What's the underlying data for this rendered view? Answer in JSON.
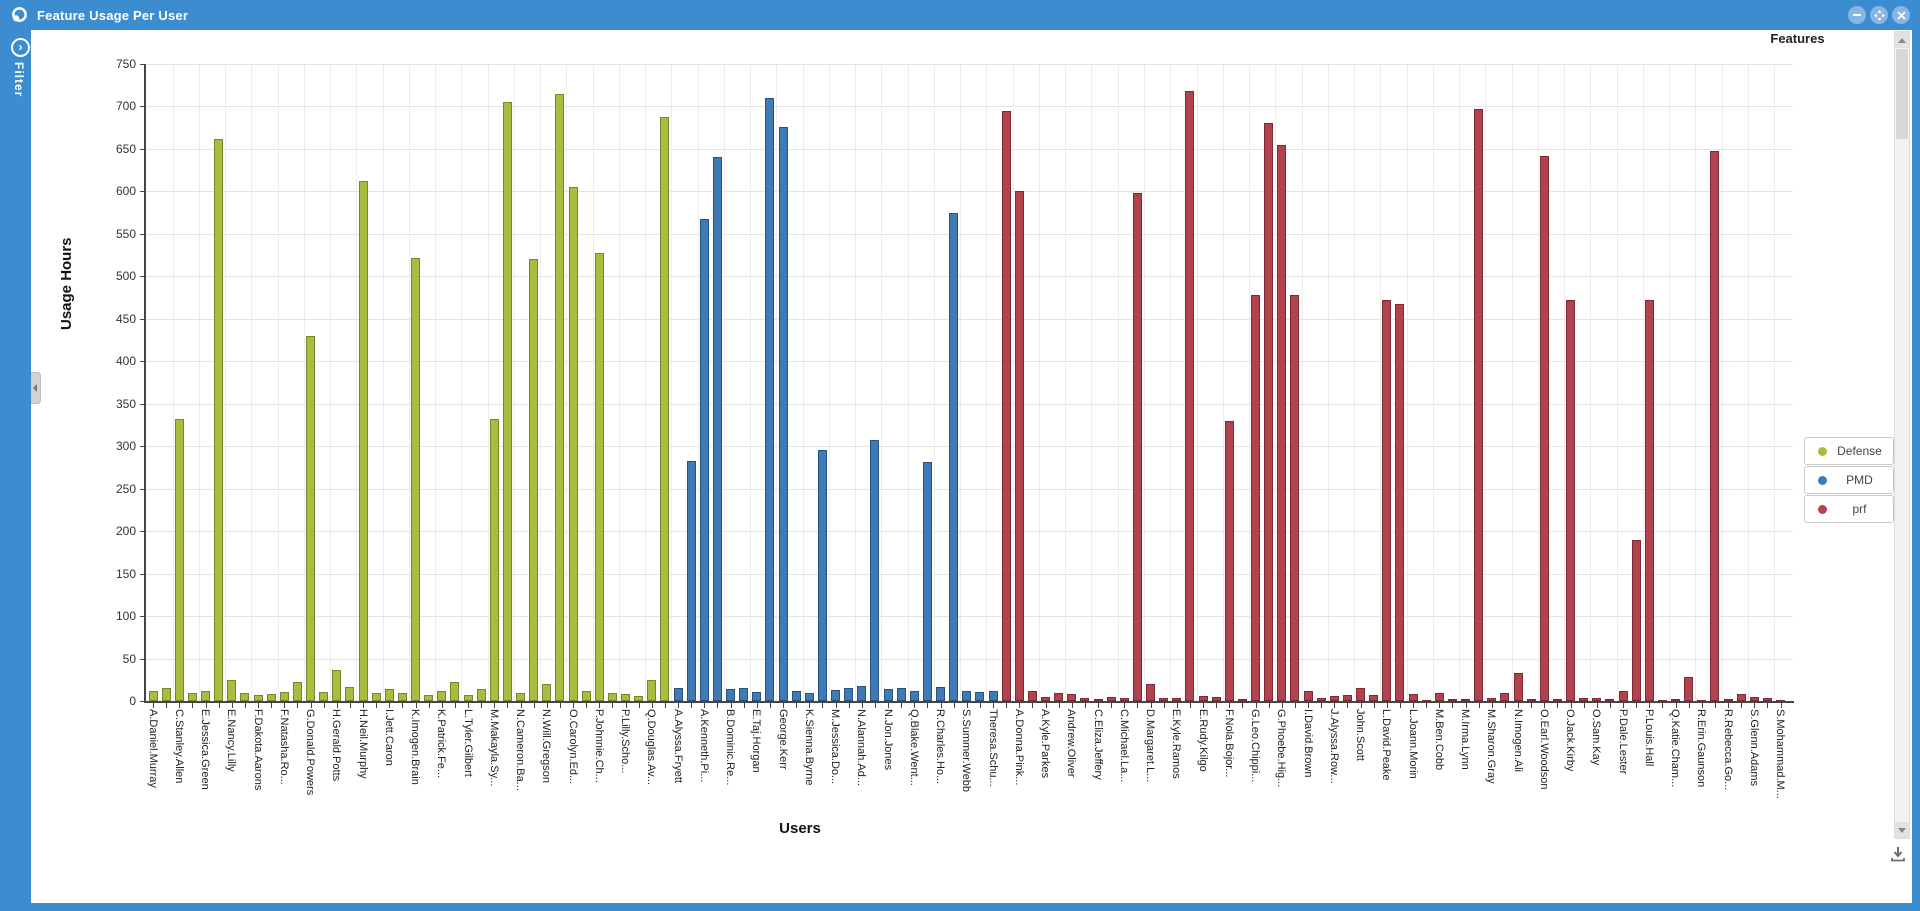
{
  "window": {
    "title": "Feature Usage Per User",
    "controls": {
      "minimize": "minimize",
      "maximize": "maximize",
      "close": "close"
    }
  },
  "sidebar": {
    "label": "Filter"
  },
  "panel": {
    "features_header": "Features"
  },
  "colors": {
    "titlebar": "#3c8dd0",
    "button_circle": "#85b6e4",
    "defense": "#a9bc3e",
    "defense_border": "#75862b",
    "pmd": "#3e7ab5",
    "pmd_border": "#27527d",
    "prf": "#b2434e",
    "prf_border": "#7c2b34"
  },
  "legend": [
    {
      "name": "Defense",
      "color": "#a9bc3e"
    },
    {
      "name": "PMD",
      "color": "#3e7ab5"
    },
    {
      "name": "prf",
      "color": "#b2434e"
    }
  ],
  "chart_data": {
    "type": "bar",
    "title": "",
    "xlabel": "Users",
    "ylabel": "Usage Hours",
    "ylim": [
      0,
      750
    ],
    "ytick_step": 50,
    "grid": true,
    "legend_position": "right",
    "series": [
      {
        "name": "Defense",
        "color": "#a9bc3e",
        "border": "#75862b"
      },
      {
        "name": "PMD",
        "color": "#3e7ab5",
        "border": "#27527d"
      },
      {
        "name": "prf",
        "color": "#b2434e",
        "border": "#7c2b34"
      }
    ],
    "bars": [
      {
        "user": "A.Daniel.Murray",
        "hours": 12,
        "feature": "Defense"
      },
      {
        "user": "",
        "hours": 15,
        "feature": "Defense"
      },
      {
        "user": "C.Stanley.Allen",
        "hours": 332,
        "feature": "Defense"
      },
      {
        "user": "",
        "hours": 9,
        "feature": "Defense"
      },
      {
        "user": "E.Jessica.Green",
        "hours": 12,
        "feature": "Defense"
      },
      {
        "user": "",
        "hours": 662,
        "feature": "Defense"
      },
      {
        "user": "E.Nancy.Lilly",
        "hours": 25,
        "feature": "Defense"
      },
      {
        "user": "",
        "hours": 9,
        "feature": "Defense"
      },
      {
        "user": "F.Dakota.Aarons",
        "hours": 7,
        "feature": "Defense"
      },
      {
        "user": "",
        "hours": 8,
        "feature": "Defense"
      },
      {
        "user": "F.Natasha.Ro...",
        "hours": 11,
        "feature": "Defense"
      },
      {
        "user": "",
        "hours": 22,
        "feature": "Defense"
      },
      {
        "user": "G.Donald.Powers",
        "hours": 430,
        "feature": "Defense"
      },
      {
        "user": "",
        "hours": 11,
        "feature": "Defense"
      },
      {
        "user": "H.Gerald.Potts",
        "hours": 37,
        "feature": "Defense"
      },
      {
        "user": "",
        "hours": 17,
        "feature": "Defense"
      },
      {
        "user": "H.Neil.Murphy",
        "hours": 612,
        "feature": "Defense"
      },
      {
        "user": "",
        "hours": 10,
        "feature": "Defense"
      },
      {
        "user": "I.Jett.Caron",
        "hours": 14,
        "feature": "Defense"
      },
      {
        "user": "",
        "hours": 10,
        "feature": "Defense"
      },
      {
        "user": "K.Imogen.Brain",
        "hours": 522,
        "feature": "Defense"
      },
      {
        "user": "",
        "hours": 7,
        "feature": "Defense"
      },
      {
        "user": "K.Patrick.Fe...",
        "hours": 12,
        "feature": "Defense"
      },
      {
        "user": "",
        "hours": 22,
        "feature": "Defense"
      },
      {
        "user": "L.Tyler.Gilbert",
        "hours": 7,
        "feature": "Defense"
      },
      {
        "user": "",
        "hours": 14,
        "feature": "Defense"
      },
      {
        "user": "M.Makayla.Sy...",
        "hours": 332,
        "feature": "Defense"
      },
      {
        "user": "",
        "hours": 705,
        "feature": "Defense"
      },
      {
        "user": "N.Cameron.Ba...",
        "hours": 9,
        "feature": "Defense"
      },
      {
        "user": "",
        "hours": 520,
        "feature": "Defense"
      },
      {
        "user": "N.Will.Gregson",
        "hours": 20,
        "feature": "Defense"
      },
      {
        "user": "",
        "hours": 715,
        "feature": "Defense"
      },
      {
        "user": "O.Carolyn.Ed...",
        "hours": 605,
        "feature": "Defense"
      },
      {
        "user": "",
        "hours": 12,
        "feature": "Defense"
      },
      {
        "user": "P.Johnnie.Ch...",
        "hours": 527,
        "feature": "Defense"
      },
      {
        "user": "",
        "hours": 9,
        "feature": "Defense"
      },
      {
        "user": "P.Lilly.Scho...",
        "hours": 8,
        "feature": "Defense"
      },
      {
        "user": "",
        "hours": 6,
        "feature": "Defense"
      },
      {
        "user": "Q.Douglas.Av...",
        "hours": 25,
        "feature": "Defense"
      },
      {
        "user": "",
        "hours": 688,
        "feature": "Defense"
      },
      {
        "user": "A.Alyssa.Fryett",
        "hours": 15,
        "feature": "PMD"
      },
      {
        "user": "",
        "hours": 282,
        "feature": "PMD"
      },
      {
        "user": "A.Kenneth.Pi...",
        "hours": 568,
        "feature": "PMD"
      },
      {
        "user": "",
        "hours": 640,
        "feature": "PMD"
      },
      {
        "user": "B.Dominic.Re...",
        "hours": 14,
        "feature": "PMD"
      },
      {
        "user": "",
        "hours": 15,
        "feature": "PMD"
      },
      {
        "user": "E.Taj.Horgan",
        "hours": 11,
        "feature": "PMD"
      },
      {
        "user": "",
        "hours": 710,
        "feature": "PMD"
      },
      {
        "user": "George.Kerr",
        "hours": 676,
        "feature": "PMD"
      },
      {
        "user": "",
        "hours": 12,
        "feature": "PMD"
      },
      {
        "user": "K.Sienna.Byrne",
        "hours": 10,
        "feature": "PMD"
      },
      {
        "user": "",
        "hours": 296,
        "feature": "PMD"
      },
      {
        "user": "M.Jessica.Do...",
        "hours": 13,
        "feature": "PMD"
      },
      {
        "user": "",
        "hours": 15,
        "feature": "PMD"
      },
      {
        "user": "N.Alannah.Ad...",
        "hours": 18,
        "feature": "PMD"
      },
      {
        "user": "",
        "hours": 307,
        "feature": "PMD"
      },
      {
        "user": "N.Jon.Jones",
        "hours": 14,
        "feature": "PMD"
      },
      {
        "user": "",
        "hours": 15,
        "feature": "PMD"
      },
      {
        "user": "Q.Blake.Went...",
        "hours": 12,
        "feature": "PMD"
      },
      {
        "user": "",
        "hours": 281,
        "feature": "PMD"
      },
      {
        "user": "R.Charles.Ho...",
        "hours": 17,
        "feature": "PMD"
      },
      {
        "user": "",
        "hours": 575,
        "feature": "PMD"
      },
      {
        "user": "S.Summer.Webb",
        "hours": 12,
        "feature": "PMD"
      },
      {
        "user": "",
        "hours": 11,
        "feature": "PMD"
      },
      {
        "user": "Theresa.Schu...",
        "hours": 12,
        "feature": "PMD"
      },
      {
        "user": "",
        "hours": 695,
        "feature": "prf"
      },
      {
        "user": "A.Donna.Pink...",
        "hours": 600,
        "feature": "prf"
      },
      {
        "user": "",
        "hours": 12,
        "feature": "prf"
      },
      {
        "user": "A.Kyle.Parkes",
        "hours": 5,
        "feature": "prf"
      },
      {
        "user": "",
        "hours": 10,
        "feature": "prf"
      },
      {
        "user": "Andrew.Oliver",
        "hours": 8,
        "feature": "prf"
      },
      {
        "user": "",
        "hours": 4,
        "feature": "prf"
      },
      {
        "user": "C.Eliza.Jeffery",
        "hours": 2,
        "feature": "prf"
      },
      {
        "user": "",
        "hours": 5,
        "feature": "prf"
      },
      {
        "user": "C.Michael.La...",
        "hours": 4,
        "feature": "prf"
      },
      {
        "user": "",
        "hours": 598,
        "feature": "prf"
      },
      {
        "user": "D.Margaret.L...",
        "hours": 20,
        "feature": "prf"
      },
      {
        "user": "",
        "hours": 3,
        "feature": "prf"
      },
      {
        "user": "E.Kyle.Ramos",
        "hours": 4,
        "feature": "prf"
      },
      {
        "user": "",
        "hours": 718,
        "feature": "prf"
      },
      {
        "user": "E.Rudy.Kilgo",
        "hours": 6,
        "feature": "prf"
      },
      {
        "user": "",
        "hours": 5,
        "feature": "prf"
      },
      {
        "user": "F.Nola.Bojor...",
        "hours": 330,
        "feature": "prf"
      },
      {
        "user": "",
        "hours": 2,
        "feature": "prf"
      },
      {
        "user": "G.Leo.Chippi...",
        "hours": 478,
        "feature": "prf"
      },
      {
        "user": "",
        "hours": 680,
        "feature": "prf"
      },
      {
        "user": "G.Phoebe.Hig...",
        "hours": 655,
        "feature": "prf"
      },
      {
        "user": "",
        "hours": 478,
        "feature": "prf"
      },
      {
        "user": "I.David.Brown",
        "hours": 12,
        "feature": "prf"
      },
      {
        "user": "",
        "hours": 4,
        "feature": "prf"
      },
      {
        "user": "J.Alyssa.Row...",
        "hours": 6,
        "feature": "prf"
      },
      {
        "user": "",
        "hours": 7,
        "feature": "prf"
      },
      {
        "user": "John.Scott",
        "hours": 15,
        "feature": "prf"
      },
      {
        "user": "",
        "hours": 7,
        "feature": "prf"
      },
      {
        "user": "L.David.Peake",
        "hours": 472,
        "feature": "prf"
      },
      {
        "user": "",
        "hours": 468,
        "feature": "prf"
      },
      {
        "user": "L.Joann.Morin",
        "hours": 8,
        "feature": "prf"
      },
      {
        "user": "",
        "hours": 1,
        "feature": "prf"
      },
      {
        "user": "M.Ben.Cobb",
        "hours": 10,
        "feature": "prf"
      },
      {
        "user": "",
        "hours": 2,
        "feature": "prf"
      },
      {
        "user": "M.Irma.Lynn",
        "hours": 2,
        "feature": "prf"
      },
      {
        "user": "",
        "hours": 697,
        "feature": "prf"
      },
      {
        "user": "M.Sharon.Gray",
        "hours": 3,
        "feature": "prf"
      },
      {
        "user": "",
        "hours": 10,
        "feature": "prf"
      },
      {
        "user": "N.Imogen.Ali",
        "hours": 33,
        "feature": "prf"
      },
      {
        "user": "",
        "hours": 2,
        "feature": "prf"
      },
      {
        "user": "O.Earl.Woodson",
        "hours": 642,
        "feature": "prf"
      },
      {
        "user": "",
        "hours": 2,
        "feature": "prf"
      },
      {
        "user": "O.Jack.Kirby",
        "hours": 472,
        "feature": "prf"
      },
      {
        "user": "",
        "hours": 3,
        "feature": "prf"
      },
      {
        "user": "O.Sam.Kay",
        "hours": 3,
        "feature": "prf"
      },
      {
        "user": "",
        "hours": 2,
        "feature": "prf"
      },
      {
        "user": "P.Dale.Lester",
        "hours": 12,
        "feature": "prf"
      },
      {
        "user": "",
        "hours": 190,
        "feature": "prf"
      },
      {
        "user": "P.Louis.Hall",
        "hours": 472,
        "feature": "prf"
      },
      {
        "user": "",
        "hours": 1,
        "feature": "prf"
      },
      {
        "user": "Q.Katie.Cham...",
        "hours": 2,
        "feature": "prf"
      },
      {
        "user": "",
        "hours": 28,
        "feature": "prf"
      },
      {
        "user": "R.Erin.Gaunson",
        "hours": 1,
        "feature": "prf"
      },
      {
        "user": "",
        "hours": 648,
        "feature": "prf"
      },
      {
        "user": "R.Rebecca.Go...",
        "hours": 2,
        "feature": "prf"
      },
      {
        "user": "",
        "hours": 8,
        "feature": "prf"
      },
      {
        "user": "S.Glenn.Adams",
        "hours": 5,
        "feature": "prf"
      },
      {
        "user": "",
        "hours": 3,
        "feature": "prf"
      },
      {
        "user": "S.Mohammad.M...",
        "hours": 1,
        "feature": "prf"
      }
    ]
  }
}
